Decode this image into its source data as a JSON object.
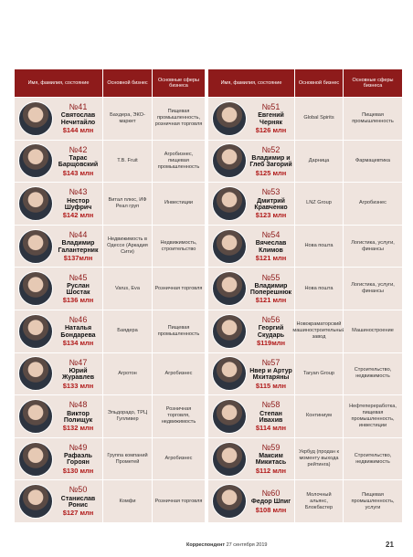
{
  "table_left": {
    "headers": [
      "Имя, фамилия, состояние",
      "Основной бизнес",
      "Основные сферы бизнеса"
    ],
    "rows": [
      {
        "number": "№41",
        "name": "Святослав Нечитайло",
        "worth": "$144 млн",
        "business": "Бахдера, ЭКО-маркет",
        "sectors": "Пищевая промышленность, розничная торговля"
      },
      {
        "number": "№42",
        "name": "Тарас Барщовский",
        "worth": "$143 млн",
        "business": "T.B. Fruit",
        "sectors": "Агробизнес, пищевая промышленность"
      },
      {
        "number": "№43",
        "name": "Нестор Шуфрич",
        "worth": "$142 млн",
        "business": "Витал плюс, ИФ Реал груп",
        "sectors": "Инвестиции"
      },
      {
        "number": "№44",
        "name": "Владимир Галантерник",
        "worth": "$137млн",
        "business": "Недвижимость в Одессе (Аркадия Сити)",
        "sectors": "Недвижимость, строительство"
      },
      {
        "number": "№45",
        "name": "Руслан Шостак",
        "worth": "$136 млн",
        "business": "Varus, Eva",
        "sectors": "Розничная торговля"
      },
      {
        "number": "№46",
        "name": "Наталья Бондарева",
        "worth": "$134 млн",
        "business": "Баядера",
        "sectors": "Пищевая промышленность"
      },
      {
        "number": "№47",
        "name": "Юрий Журавлев",
        "worth": "$133 млн",
        "business": "Агротон",
        "sectors": "Агробизнес"
      },
      {
        "number": "№48",
        "name": "Виктор Полищук",
        "worth": "$132 млн",
        "business": "Эльдорадо, ТРЦ Гулливер",
        "sectors": "Розничная торговля, недвижимость"
      },
      {
        "number": "№49",
        "name": "Рафаэль Гороян",
        "worth": "$130 млн",
        "business": "Группа компаний Прометей",
        "sectors": "Агробизнес"
      },
      {
        "number": "№50",
        "name": "Станислав Ронис",
        "worth": "$127 млн",
        "business": "Комфи",
        "sectors": "Розничная торговля"
      }
    ]
  },
  "table_right": {
    "headers": [
      "Имя, фамилия, состояние",
      "Основной бизнес",
      "Основные сферы бизнеса"
    ],
    "rows": [
      {
        "number": "№51",
        "name": "Евгений Черняк",
        "worth": "$126 млн",
        "business": "Global Spirits",
        "sectors": "Пищевая промышленность"
      },
      {
        "number": "№52",
        "name": "Владимир и Глеб Загорий",
        "worth": "$125 млн",
        "business": "Дарница",
        "sectors": "Фармацевтика"
      },
      {
        "number": "№53",
        "name": "Дмитрий Кравченко",
        "worth": "$123 млн",
        "business": "LNZ Group",
        "sectors": "Агробизнес"
      },
      {
        "number": "№54",
        "name": "Вячеслав Климов",
        "worth": "$121 млн",
        "business": "Нова пошта",
        "sectors": "Логистика, услуги, финансы"
      },
      {
        "number": "№55",
        "name": "Владимир Поперешнюк",
        "worth": "$121 млн",
        "business": "Нова пошта",
        "sectors": "Логистика, услуги, финансы"
      },
      {
        "number": "№56",
        "name": "Георгий Скударь",
        "worth": "$119млн",
        "business": "Новокраматорский машиностроительный завод",
        "sectors": "Машиностроение"
      },
      {
        "number": "№57",
        "name": "Нвер и Артур Мхитаряны",
        "worth": "$115 млн",
        "business": "Taryan Group",
        "sectors": "Строительство, недвижимость"
      },
      {
        "number": "№58",
        "name": "Степан Ивахив",
        "worth": "$114 млн",
        "business": "Континиум",
        "sectors": "Нефтепереработка, пищевая промышленность, инвестиции"
      },
      {
        "number": "№59",
        "name": "Максим Микитась",
        "worth": "$112 млн",
        "business": "Укрбуд (продан к моменту выхода рейтинга)",
        "sectors": "Строительство, недвижимость"
      },
      {
        "number": "№60",
        "name": "Федор Шпиг",
        "worth": "$108 млн",
        "business": "Молочный альянс, Блокбастер",
        "sectors": "Пищевая промышленность, услуги"
      }
    ]
  },
  "footer": {
    "magazine": "Корреспондент",
    "date": "27 сентября 2019",
    "page": "21"
  }
}
